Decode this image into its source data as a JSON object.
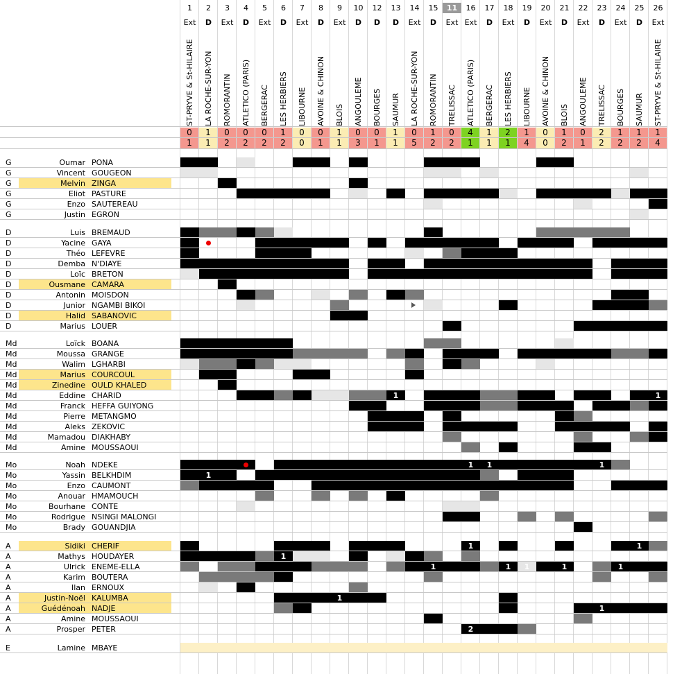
{
  "matches": [
    {
      "num": "1",
      "loc": "Ext",
      "opp": "ST-PRYVE & St-HILAIRE",
      "s1": "0",
      "s2": "1",
      "r": "lose"
    },
    {
      "num": "2",
      "loc": "D",
      "opp": "LA ROCHE-SUR-YON",
      "s1": "1",
      "s2": "1",
      "r": "draw"
    },
    {
      "num": "3",
      "loc": "Ext",
      "opp": "ROMORANTIN",
      "s1": "0",
      "s2": "2",
      "r": "lose"
    },
    {
      "num": "4",
      "loc": "D",
      "opp": "ATLETICO (PARIS)",
      "s1": "0",
      "s2": "2",
      "r": "lose"
    },
    {
      "num": "5",
      "loc": "Ext",
      "opp": "BERGERAC",
      "s1": "0",
      "s2": "2",
      "r": "lose"
    },
    {
      "num": "6",
      "loc": "D",
      "opp": "LES HERBIERS",
      "s1": "1",
      "s2": "2",
      "r": "lose"
    },
    {
      "num": "7",
      "loc": "Ext",
      "opp": "LIBOURNE",
      "s1": "0",
      "s2": "0",
      "r": "draw"
    },
    {
      "num": "8",
      "loc": "D",
      "opp": "AVOINE & CHINON",
      "s1": "0",
      "s2": "1",
      "r": "lose"
    },
    {
      "num": "9",
      "loc": "Ext",
      "opp": "BLOIS",
      "s1": "1",
      "s2": "1",
      "r": "draw"
    },
    {
      "num": "10",
      "loc": "D",
      "opp": "ANGOULEME",
      "s1": "0",
      "s2": "3",
      "r": "lose"
    },
    {
      "num": "12",
      "loc": "D",
      "opp": "BOURGES",
      "s1": "0",
      "s2": "1",
      "r": "lose"
    },
    {
      "num": "13",
      "loc": "D",
      "opp": "SAUMUR",
      "s1": "1",
      "s2": "1",
      "r": "draw"
    },
    {
      "num": "14",
      "loc": "Ext",
      "opp": "LA ROCHE-SUR-YON",
      "s1": "0",
      "s2": "5",
      "r": "lose"
    },
    {
      "num": "15",
      "loc": "D",
      "opp": "ROMORANTIN",
      "s1": "1",
      "s2": "2",
      "r": "lose"
    },
    {
      "num": "11",
      "loc": "Ext",
      "opp": "TRELISSAC",
      "s1": "0",
      "s2": "2",
      "r": "lose",
      "hl": true
    },
    {
      "num": "16",
      "loc": "Ext",
      "opp": "ATLETICO (PARIS)",
      "s1": "4",
      "s2": "1",
      "r": "win"
    },
    {
      "num": "17",
      "loc": "D",
      "opp": "BERGERAC",
      "s1": "1",
      "s2": "1",
      "r": "draw"
    },
    {
      "num": "18",
      "loc": "Ext",
      "opp": "LES HERBIERS",
      "s1": "2",
      "s2": "1",
      "r": "win"
    },
    {
      "num": "19",
      "loc": "D",
      "opp": "LIBOURNE",
      "s1": "1",
      "s2": "4",
      "r": "lose"
    },
    {
      "num": "20",
      "loc": "Ext",
      "opp": "AVOINE & CHINON",
      "s1": "0",
      "s2": "0",
      "r": "draw"
    },
    {
      "num": "21",
      "loc": "D",
      "opp": "BLOIS",
      "s1": "1",
      "s2": "2",
      "r": "lose"
    },
    {
      "num": "22",
      "loc": "Ext",
      "opp": "ANGOULEME",
      "s1": "0",
      "s2": "1",
      "r": "lose"
    },
    {
      "num": "23",
      "loc": "D",
      "opp": "TRELISSAC",
      "s1": "2",
      "s2": "2",
      "r": "draw"
    },
    {
      "num": "24",
      "loc": "Ext",
      "opp": "BOURGES",
      "s1": "1",
      "s2": "2",
      "r": "lose"
    },
    {
      "num": "25",
      "loc": "D",
      "opp": "SAUMUR",
      "s1": "1",
      "s2": "2",
      "r": "lose"
    },
    {
      "num": "26",
      "loc": "Ext",
      "opp": "ST-PRYVE & St-HILAIRE",
      "s1": "1",
      "s2": "4",
      "r": "lose"
    }
  ],
  "cell_legend": {
    "b": "#000000",
    "g": "#7a7a7a",
    "l": "#e6e6e6",
    "y": "#fdf0c6"
  },
  "players": [
    {
      "pos": "G",
      "first": "Oumar",
      "last": "PONA",
      "cells": "bb.l..bb.b...bbb...bb.."
    },
    {
      "pos": "G",
      "first": "Vincent",
      "last": "GOUGEON",
      "cells": "ll...........ll.l.......l"
    },
    {
      "pos": "G",
      "first": "Melvin",
      "last": "ZINGA",
      "hl": true,
      "cells": "..b......b"
    },
    {
      "pos": "G",
      "first": "Eliot",
      "last": "PASTURE",
      "cells": "...bbbbb.l.b.bbbbl.bbbblbb"
    },
    {
      "pos": "G",
      "first": "Enzo",
      "last": "SAUTEREAU",
      "cells": ".............l.......l...b"
    },
    {
      "pos": "G",
      "first": "Justin",
      "last": "EGRON",
      "cells": "........................l"
    },
    {
      "pos": "D",
      "first": "Luis",
      "last": "BREMAUD",
      "cells": "bggbgl.......b.....ggggg..gb"
    },
    {
      "pos": "D",
      "first": "Yacine",
      "last": "GAYA",
      "dot": 2,
      "cells": "b...bbbbb.b.bbbbb.bbb.bbbbg"
    },
    {
      "pos": "D",
      "first": "Théo",
      "last": "LEFEVRE",
      "cells": "b...bbb.....l.gbbb"
    },
    {
      "pos": "D",
      "first": "Demba",
      "last": "N'DIAYE",
      "cells": "bbbbbbbbb.bb.bbbbbbbbb.bbb"
    },
    {
      "pos": "D",
      "first": "Loïc",
      "last": "BRETON",
      "cells": "lbbbbbbbb.bbbbbbbbbbbb.bbb"
    },
    {
      "pos": "D",
      "first": "Ousmane",
      "last": "CAMARA",
      "hl": true,
      "cells": "..b"
    },
    {
      "pos": "D",
      "first": "Antonin",
      "last": "MOISDON",
      "cells": "...bg..l.g.bg..........bb"
    },
    {
      "pos": "D",
      "first": "Junior",
      "last": "NGAMBI BIKOI",
      "cells": "...l....g....l...b....bbbgb"
    },
    {
      "pos": "D",
      "first": "Halid",
      "last": "SABANOVIC",
      "hl": true,
      "arrow": 14,
      "cells": "........bb"
    },
    {
      "pos": "D",
      "first": "Marius",
      "last": "LOUER",
      "cells": "..............b......bbbbb"
    },
    {
      "pos": "Md",
      "first": "Loïck",
      "last": "BOANA",
      "cells": "bbbbbb.......gg.....l"
    },
    {
      "pos": "Md",
      "first": "Moussa",
      "last": "GRANGE",
      "cells": "bbbbbbgggg.gb.bbb.bbbbbggb"
    },
    {
      "pos": "Md",
      "first": "Walim",
      "last": "LGHARBI",
      "cells": "lggbgll.....g.bg...l"
    },
    {
      "pos": "Md",
      "first": "Marius",
      "last": "COURCOUL",
      "hl": true,
      "cells": ".bb...bb....b"
    },
    {
      "pos": "Md",
      "first": "Zinedine",
      "last": "OULD KHALED",
      "hl": true,
      "cells": "..b"
    },
    {
      "pos": "Md",
      "first": "Eddine",
      "last": "CHARID",
      "goals": {
        "13": "1",
        "26": "1"
      },
      "cells": "...bbgbllgg..bbbggbb.bb.bbgb"
    },
    {
      "pos": "Md",
      "first": "Franck",
      "last": "HEFFA GUIYONG",
      "cells": ".........bb..bbbggbbb.bbgbg"
    },
    {
      "pos": "Md",
      "first": "Pierre",
      "last": "METANGMO",
      "cells": "..........bbb.b.....bg"
    },
    {
      "pos": "Md",
      "first": "Aleks",
      "last": "ZEKOVIC",
      "cells": "..........bbb.bbbb..bbbb.bgbbb"
    },
    {
      "pos": "Md",
      "first": "Mamadou",
      "last": "DIAKHABY",
      "cells": "..............g......g..gbbb"
    },
    {
      "pos": "Md",
      "first": "Amine",
      "last": "MOUSSAOUI",
      "cells": "...............g.b...bb"
    },
    {
      "pos": "Mo",
      "first": "Noah",
      "last": "NDEKE",
      "dot": 4,
      "goals": {
        "16": "1",
        "17": "1",
        "23": "1"
      },
      "cells": "bbbb.bbbbbbbbbbbbbbbbbbg"
    },
    {
      "pos": "Mo",
      "first": "Yassin",
      "last": "BELKHDIM",
      "goals": {
        "2": "1"
      },
      "cells": "bbb.bbbbbbbbbbbbg.bbb"
    },
    {
      "pos": "Mo",
      "first": "Enzo",
      "last": "CAUMONT",
      "cells": "gbbbb..bbbbbbbbbbbbbb..bbbbb"
    },
    {
      "pos": "Mo",
      "first": "Anouar",
      "last": "HMAMOUCH",
      "cells": "....g..g.g.b....g"
    },
    {
      "pos": "Mo",
      "first": "Bourhane",
      "last": "CONTE",
      "cells": "...l..........ll............g......g"
    },
    {
      "pos": "Mo",
      "first": "Rodrigue",
      "last": "NSINGI MALONGI",
      "cells": "..............bb..g.g....g..gb"
    },
    {
      "pos": "Mo",
      "first": "Brady",
      "last": "GOUANDJIA",
      "cells": ".....................b"
    },
    {
      "pos": "A",
      "first": "Sidiki",
      "last": "CHERIF",
      "hl": true,
      "goals": {
        "16": "1",
        "25": "1"
      },
      "cells": "b....bbb.bbb...b.b..b..bbg"
    },
    {
      "pos": "A",
      "first": "Mathys",
      "last": "HOUDAYER",
      "goals": {
        "6": "1"
      },
      "cells": "bbbbgbll.b.lbg.g"
    },
    {
      "pos": "A",
      "first": "Ulrick",
      "last": "ENEME-ELLA",
      "goals": {
        "15": "1",
        "18": "1",
        "19": "1",
        "21": "1",
        "24": "1"
      },
      "cells": "g.ggbbbggg.gbbbbg.lbb.gbbbb"
    },
    {
      "pos": "A",
      "first": "Karim",
      "last": "BOUTERA",
      "cells": ".ggggb.......g........g..g"
    },
    {
      "pos": "A",
      "first": "Ilan",
      "last": "ERNOUX",
      "cells": ".l.b.....g"
    },
    {
      "pos": "A",
      "first": "Justin-Noël",
      "last": "KALUMBA",
      "hl": true,
      "goals": {
        "9": "1"
      },
      "cells": ".....bbbbbb......b"
    },
    {
      "pos": "A",
      "first": "Guédénoah",
      "last": "NADJE",
      "hl": true,
      "goals": {
        "23": "1"
      },
      "cells": ".....gb..........b...b.bbb.g"
    },
    {
      "pos": "A",
      "first": "Amine",
      "last": "MOUSSAOUI",
      "cells": ".............b.......g"
    },
    {
      "pos": "A",
      "first": "Prosper",
      "last": "PETER",
      "goals": {
        "16": "2"
      },
      "cells": "...............bbbg"
    },
    {
      "pos": "E",
      "first": "Lamine",
      "last": "MBAYE",
      "cells": "yyyyyyyyyyyyyyyyyyyyyyyyyy"
    }
  ]
}
